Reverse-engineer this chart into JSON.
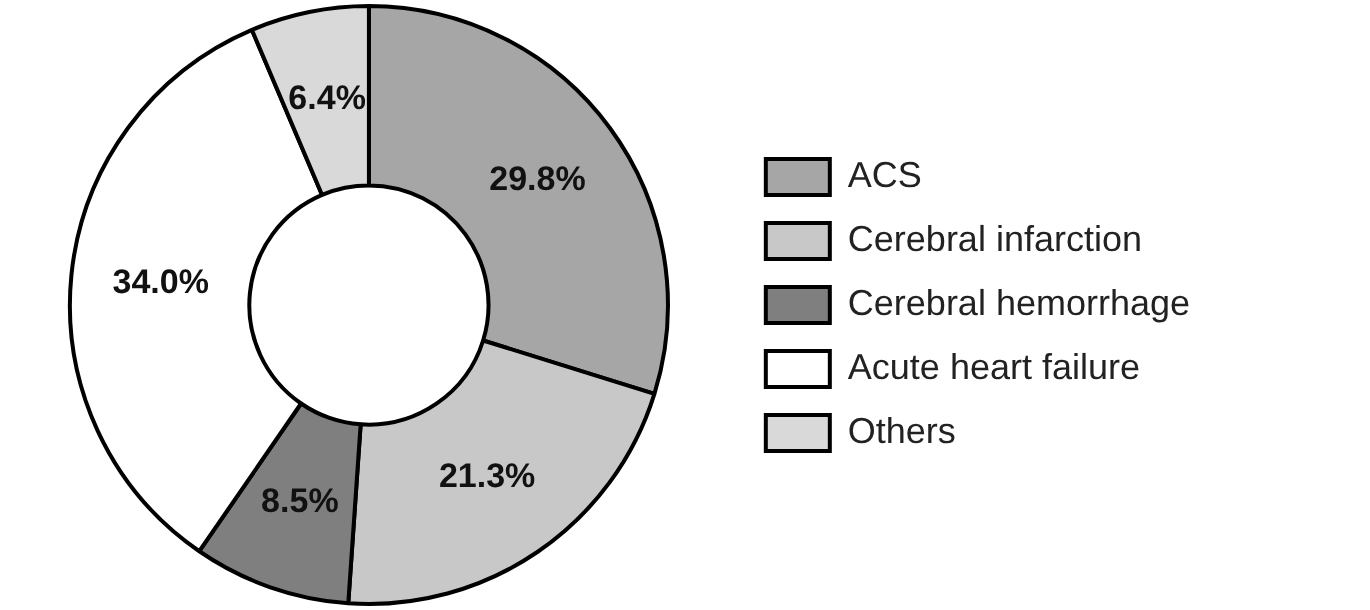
{
  "chart_data": {
    "type": "donut",
    "categories": [
      "ACS",
      "Cerebral infarction",
      "Cerebral hemorrhage",
      "Acute heart failure",
      "Others"
    ],
    "values": [
      29.8,
      21.3,
      8.5,
      34.0,
      6.4
    ],
    "colors": [
      "#a6a6a6",
      "#c8c8c8",
      "#7f7f7f",
      "#ffffff",
      "#d9d9d9"
    ],
    "value_labels": [
      "29.8%",
      "21.3%",
      "8.5%",
      "34.0%",
      "6.4%"
    ],
    "legend": "right"
  }
}
